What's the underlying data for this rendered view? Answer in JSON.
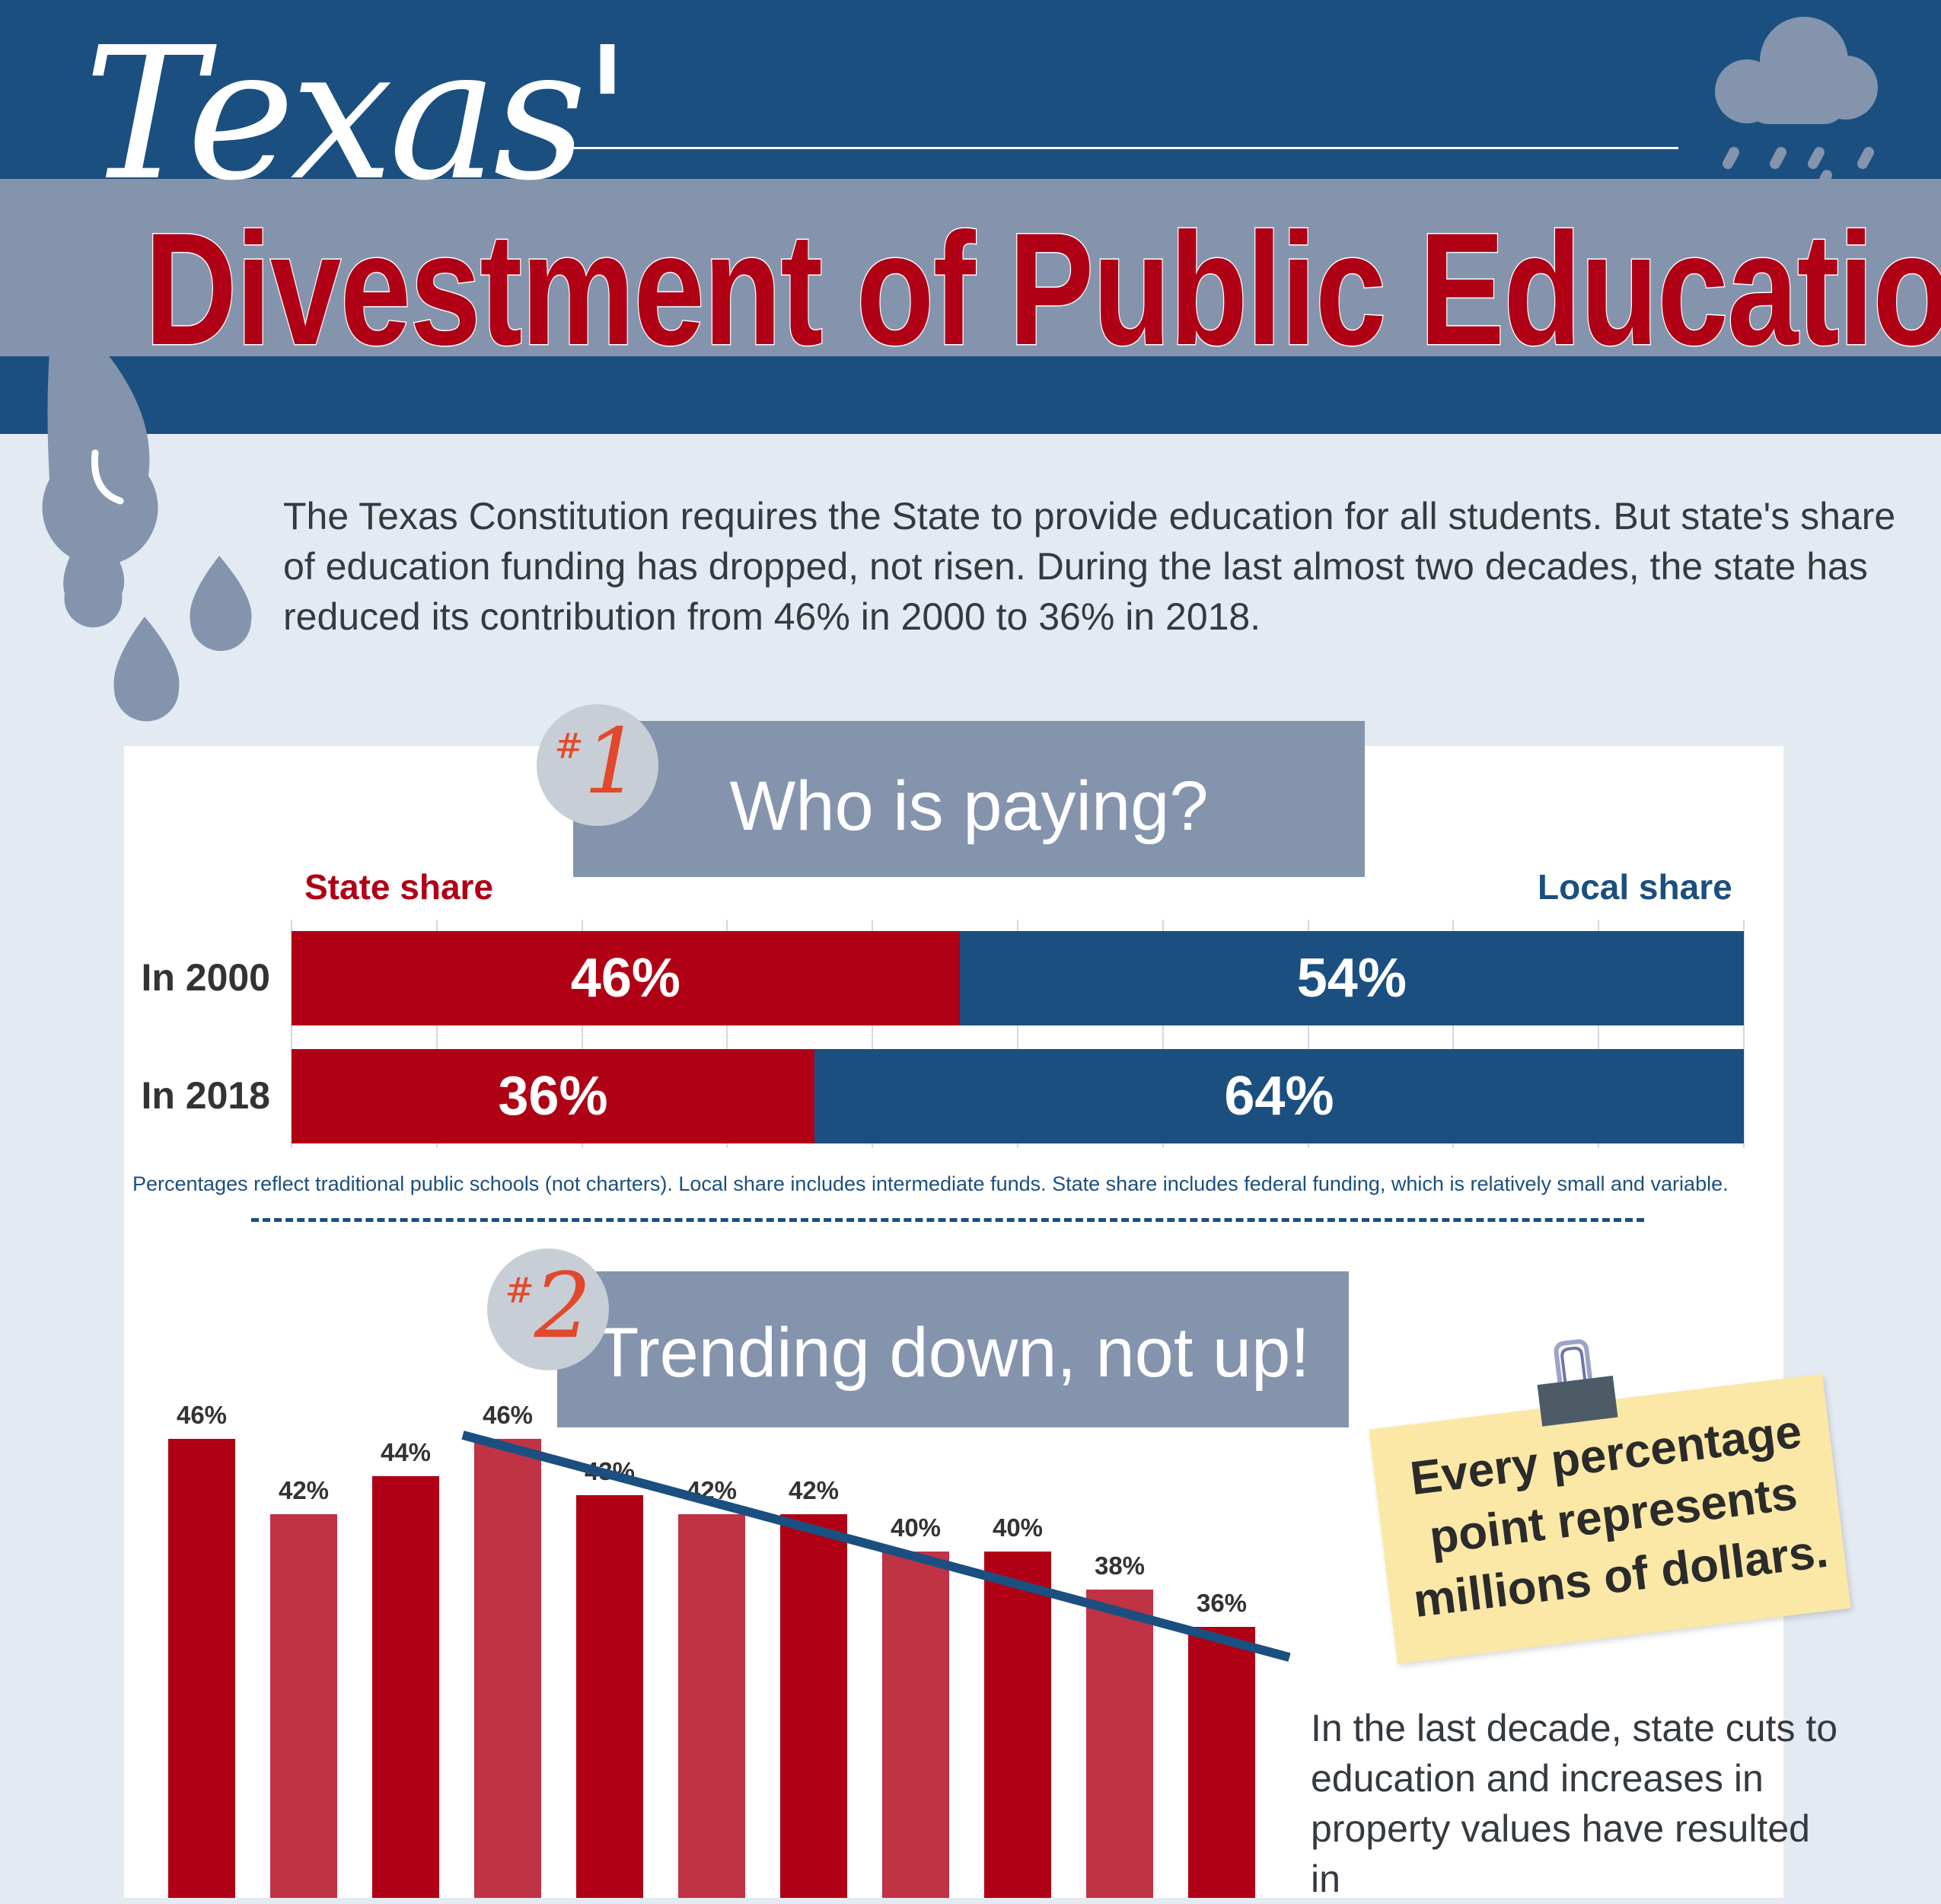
{
  "header": {
    "title_script": "Texas'",
    "title_main": "Divestment of Public Education"
  },
  "intro": "The Texas Constitution requires the State to provide education for all students. But state's share of education funding has dropped, not risen. During the last almost two decades, the state has reduced its contribution from 46% in 2000 to 36% in 2018.",
  "section1": {
    "badge_hash": "#",
    "badge_num": "1",
    "title": "Who is paying?",
    "note": "Percentages reflect traditional public schools (not charters). Local share includes intermediate funds. State share includes federal funding, which is relatively small and variable."
  },
  "section2": {
    "badge_hash": "#",
    "badge_num": "2",
    "title": "Trending down, not up!"
  },
  "sticky_note": "Every percentage point represents millions of dollars.",
  "side_text": "In the last decade, state cuts to education and increases in property values have resulted in",
  "colors": {
    "state": "#b00016",
    "state_alt": "#c03344",
    "local": "#1b4f80",
    "header_band": "#8494ad",
    "trend": "#1b4f80",
    "badge_number": "#e2482c"
  },
  "chart_data": [
    {
      "type": "bar",
      "orientation": "horizontal",
      "stacked": true,
      "categories": [
        "In 2000",
        "In 2018"
      ],
      "series": [
        {
          "name": "State share",
          "values": [
            46,
            36
          ],
          "labels": [
            "46%",
            "36%"
          ]
        },
        {
          "name": "Local share",
          "values": [
            54,
            64
          ],
          "labels": [
            "54%",
            "64%"
          ]
        }
      ],
      "xlim": [
        0,
        100
      ],
      "grid": true,
      "legend": "top"
    },
    {
      "type": "bar",
      "values": [
        46,
        42,
        44,
        46,
        43,
        42,
        42,
        40,
        40,
        38,
        36
      ],
      "labels": [
        "46%",
        "42%",
        "44%",
        "46%",
        "43%",
        "42%",
        "42%",
        "40%",
        "40%",
        "38%",
        "36%"
      ],
      "trendline": {
        "from_index": 3,
        "to_index": 10,
        "direction": "down"
      }
    }
  ]
}
